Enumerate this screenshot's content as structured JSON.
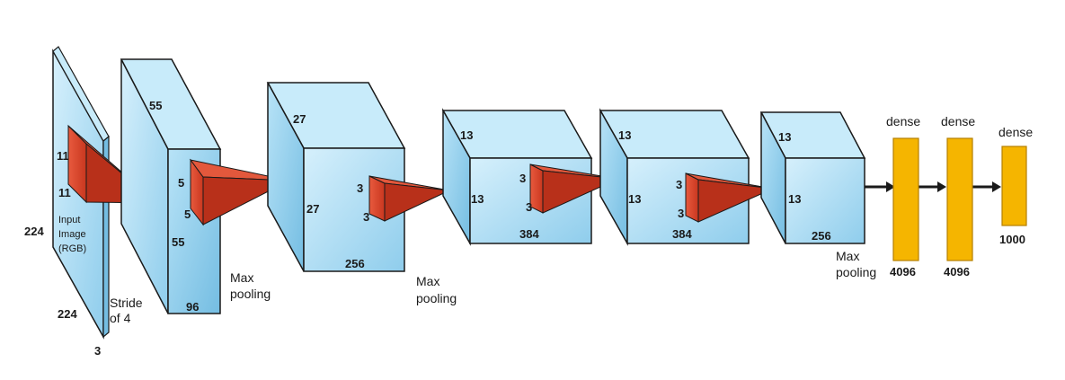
{
  "input": {
    "height": "224",
    "width": "224",
    "depth": "3",
    "label_line1": "Input",
    "label_line2": "Image",
    "label_line3": "(RGB)",
    "kernel_h": "11",
    "kernel_w": "11",
    "stride_line1": "Stride",
    "stride_line2": "of 4"
  },
  "conv1": {
    "size_top": "55",
    "size_side": "55",
    "depth": "96",
    "kernel_h": "5",
    "kernel_w": "5"
  },
  "pool1": {
    "line1": "Max",
    "line2": "pooling"
  },
  "conv2": {
    "size_top": "27",
    "size_side": "27",
    "depth": "256",
    "kernel_h": "3",
    "kernel_w": "3"
  },
  "pool2": {
    "line1": "Max",
    "line2": "pooling"
  },
  "conv3": {
    "size_top": "13",
    "size_side": "13",
    "depth": "384",
    "kernel_h": "3",
    "kernel_w": "3"
  },
  "conv4": {
    "size_top": "13",
    "size_side": "13",
    "depth": "384",
    "kernel_h": "3",
    "kernel_w": "3"
  },
  "conv5": {
    "size_top": "13",
    "size_side": "13",
    "depth": "256"
  },
  "pool3": {
    "line1": "Max",
    "line2": "pooling"
  },
  "dense": [
    {
      "label": "dense",
      "size": "4096"
    },
    {
      "label": "dense",
      "size": "4096"
    },
    {
      "label": "dense",
      "size": "1000"
    }
  ],
  "colors": {
    "block_front": "#a9dcf4",
    "block_side": "#83c7e8",
    "block_top": "#c8ebfa",
    "kernel": "#d9442a",
    "kernel_dark": "#a9301c",
    "dense": "#f5b500",
    "dense_border": "#b57f00"
  }
}
